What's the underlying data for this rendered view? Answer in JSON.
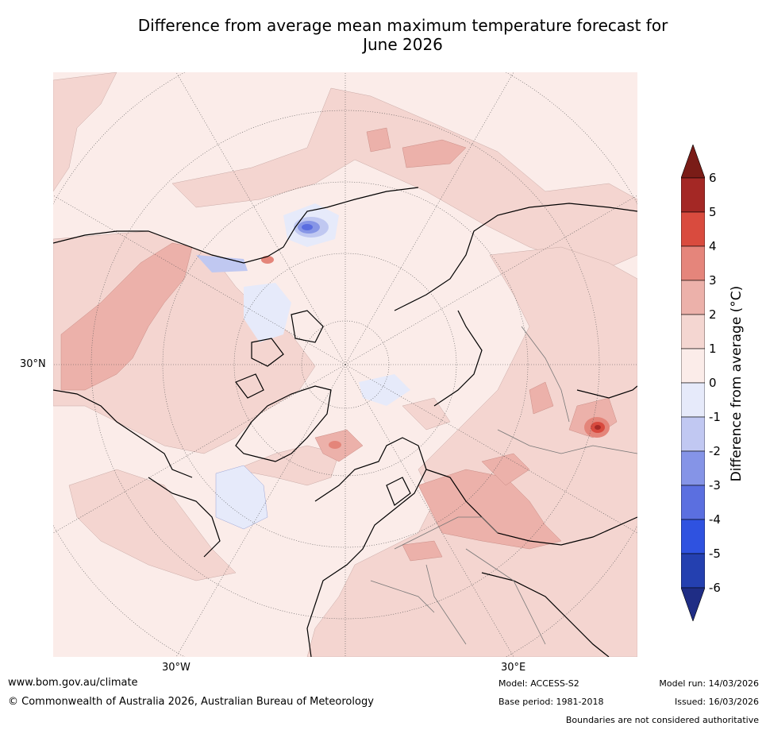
{
  "title_line1": "Difference from average mean maximum temperature forecast for",
  "title_line2": "June 2026",
  "map": {
    "lat_label": "30°N",
    "lon_label_left": "30°W",
    "lon_label_right": "30°E",
    "projection": "North polar stereographic",
    "colors": {
      "ocean_neutral": "#fbece9",
      "anom_1_2": "#f4d5d0",
      "anom_2_3": "#ecb1aa",
      "anom_3_4": "#e4857a",
      "anom_4_5": "#d84a3e",
      "anom_5_6": "#a52a26",
      "anom_m0_m1": "#e6eafa",
      "anom_m1_m2": "#c0c8f1",
      "anom_m2_m3": "#8796e6",
      "anom_m3_m4": "#5a6de0"
    }
  },
  "colorbar": {
    "title": "Difference from average (°C)",
    "ticks": [
      "6",
      "5",
      "4",
      "3",
      "2",
      "1",
      "0",
      "-1",
      "-2",
      "-3",
      "-4",
      "-5",
      "-6"
    ],
    "segments": [
      {
        "range": "5 to 6",
        "color": "#a42825"
      },
      {
        "range": "4 to 5",
        "color": "#d94b3e"
      },
      {
        "range": "3 to 4",
        "color": "#e5857b"
      },
      {
        "range": "2 to 3",
        "color": "#ecb1aa"
      },
      {
        "range": "1 to 2",
        "color": "#f4d6d1"
      },
      {
        "range": "0 to 1",
        "color": "#fbece9"
      },
      {
        "range": "-1 to 0",
        "color": "#e6eafa"
      },
      {
        "range": "-2 to -1",
        "color": "#c1c8f2"
      },
      {
        "range": "-3 to -2",
        "color": "#8594e7"
      },
      {
        "range": "-4 to -3",
        "color": "#5b6fe0"
      },
      {
        "range": "-5 to -4",
        "color": "#2f52e0"
      },
      {
        "range": "-6 to -5",
        "color": "#2440b0"
      }
    ],
    "extend_top_color": "#7a1c17",
    "extend_bottom_color": "#1f2d85"
  },
  "footer": {
    "url": "www.bom.gov.au/climate",
    "copyright": "© Commonwealth of Australia 2026, Australian Bureau of Meteorology",
    "model": "Model: ACCESS-S2",
    "base_period": "Base period: 1981-2018",
    "model_run": "Model run: 14/03/2026",
    "issued": "Issued: 16/03/2026",
    "disclaimer": "Boundaries are not considered authoritative"
  }
}
